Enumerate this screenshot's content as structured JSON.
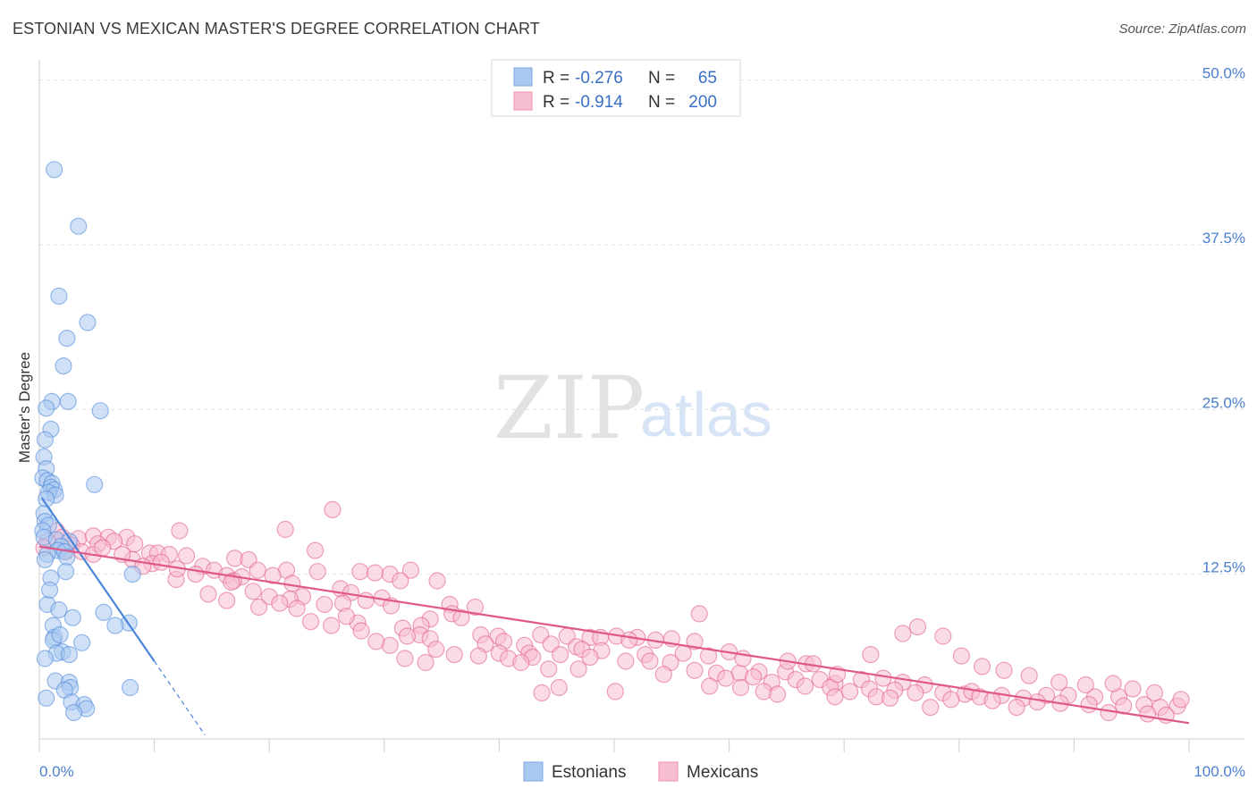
{
  "title": "ESTONIAN VS MEXICAN MASTER'S DEGREE CORRELATION CHART",
  "source": "Source: ZipAtlas.com",
  "watermark": {
    "zip": "ZIP",
    "atlas": "atlas"
  },
  "legend_top": {
    "rows": [
      {
        "r_label": "R = ",
        "r_value": "-0.276",
        "n_label": "N = ",
        "n_value": "65",
        "color": "#a9c8f0"
      },
      {
        "r_label": "R = ",
        "r_value": "-0.914",
        "n_label": "N = ",
        "n_value": "200",
        "color": "#f7bdd0"
      }
    ]
  },
  "legend_bottom": [
    {
      "label": "Estonians",
      "color": "#a9c8f0"
    },
    {
      "label": "Mexicans",
      "color": "#f7bdd0"
    }
  ],
  "chart_data": {
    "type": "scatter",
    "title": "ESTONIAN VS MEXICAN MASTER'S DEGREE CORRELATION CHART",
    "xlabel": "",
    "ylabel": "Master's Degree",
    "xlim": [
      0,
      100
    ],
    "ylim": [
      0,
      52
    ],
    "x_tick_labels": [
      {
        "value": 0,
        "label": "0.0%"
      },
      {
        "value": 100,
        "label": "100.0%"
      }
    ],
    "y_tick_labels": [
      {
        "value": 12.5,
        "label": "12.5%"
      },
      {
        "value": 25,
        "label": "25.0%"
      },
      {
        "value": 37.5,
        "label": "37.5%"
      },
      {
        "value": 50,
        "label": "50.0%"
      }
    ],
    "grid": true,
    "series": [
      {
        "name": "Estonians",
        "color": "#4a86d8",
        "fill": "#a9c8f0",
        "r": -0.276,
        "n": 65,
        "trend": {
          "x1": 0.2,
          "y1": 18.3,
          "x2": 10,
          "y2": 5.9,
          "dash_to_x": 14.4,
          "dash_to_y": 0.3
        },
        "points": [
          [
            1.3,
            43.2
          ],
          [
            3.4,
            38.9
          ],
          [
            1.7,
            33.6
          ],
          [
            4.2,
            31.6
          ],
          [
            2.4,
            30.4
          ],
          [
            2.1,
            28.3
          ],
          [
            1.1,
            25.6
          ],
          [
            2.5,
            25.6
          ],
          [
            5.3,
            24.9
          ],
          [
            0.6,
            25.1
          ],
          [
            1.0,
            23.5
          ],
          [
            0.5,
            22.7
          ],
          [
            0.4,
            21.4
          ],
          [
            0.6,
            20.5
          ],
          [
            0.3,
            19.8
          ],
          [
            0.7,
            19.6
          ],
          [
            1.1,
            19.4
          ],
          [
            1.0,
            19.1
          ],
          [
            1.3,
            18.9
          ],
          [
            0.8,
            18.7
          ],
          [
            1.4,
            18.5
          ],
          [
            4.8,
            19.3
          ],
          [
            0.6,
            18.2
          ],
          [
            0.4,
            17.1
          ],
          [
            0.5,
            16.5
          ],
          [
            0.8,
            16.2
          ],
          [
            0.3,
            15.8
          ],
          [
            0.4,
            15.3
          ],
          [
            1.5,
            15.1
          ],
          [
            2.6,
            15.0
          ],
          [
            1.9,
            14.6
          ],
          [
            1.6,
            14.3
          ],
          [
            2.2,
            14.2
          ],
          [
            0.7,
            14.0
          ],
          [
            2.4,
            13.8
          ],
          [
            0.5,
            13.6
          ],
          [
            2.3,
            12.7
          ],
          [
            8.1,
            12.5
          ],
          [
            1.0,
            12.2
          ],
          [
            0.7,
            10.2
          ],
          [
            1.7,
            9.8
          ],
          [
            5.6,
            9.6
          ],
          [
            7.8,
            8.8
          ],
          [
            6.6,
            8.6
          ],
          [
            1.2,
            8.6
          ],
          [
            1.3,
            7.7
          ],
          [
            1.2,
            7.5
          ],
          [
            3.7,
            7.3
          ],
          [
            2.0,
            6.6
          ],
          [
            1.5,
            6.5
          ],
          [
            2.6,
            6.4
          ],
          [
            1.4,
            4.4
          ],
          [
            2.6,
            4.3
          ],
          [
            7.9,
            3.9
          ],
          [
            2.7,
            3.9
          ],
          [
            2.2,
            3.7
          ],
          [
            2.8,
            2.8
          ],
          [
            3.9,
            2.6
          ],
          [
            4.1,
            2.3
          ],
          [
            3.0,
            2.0
          ],
          [
            0.5,
            6.1
          ],
          [
            0.9,
            11.3
          ],
          [
            1.8,
            7.9
          ],
          [
            2.9,
            9.2
          ],
          [
            0.6,
            3.1
          ]
        ]
      },
      {
        "name": "Mexicans",
        "color": "#e0578a",
        "fill": "#f7bdd0",
        "r": -0.914,
        "n": 200,
        "trend": {
          "x1": 0,
          "y1": 14.6,
          "x2": 100,
          "y2": 1.2
        },
        "points": [
          [
            25.5,
            17.4
          ],
          [
            21.4,
            15.9
          ],
          [
            12.2,
            15.8
          ],
          [
            1.5,
            15.8
          ],
          [
            2.0,
            15.3
          ],
          [
            3.4,
            15.2
          ],
          [
            4.7,
            15.4
          ],
          [
            6.0,
            15.3
          ],
          [
            7.6,
            15.3
          ],
          [
            0.7,
            15.0
          ],
          [
            2.8,
            14.7
          ],
          [
            5.1,
            14.8
          ],
          [
            6.5,
            15.0
          ],
          [
            8.3,
            14.8
          ],
          [
            0.4,
            14.5
          ],
          [
            2.3,
            14.2
          ],
          [
            3.7,
            14.2
          ],
          [
            4.7,
            14.0
          ],
          [
            9.6,
            14.1
          ],
          [
            10.3,
            14.1
          ],
          [
            11.3,
            14.0
          ],
          [
            12.8,
            13.9
          ],
          [
            8.1,
            13.6
          ],
          [
            9.8,
            13.3
          ],
          [
            14.2,
            13.1
          ],
          [
            17.0,
            13.7
          ],
          [
            18.2,
            13.6
          ],
          [
            9.0,
            13.1
          ],
          [
            15.2,
            12.8
          ],
          [
            19.0,
            12.8
          ],
          [
            21.5,
            12.8
          ],
          [
            24.2,
            12.7
          ],
          [
            16.3,
            12.4
          ],
          [
            17.6,
            12.3
          ],
          [
            20.3,
            12.4
          ],
          [
            11.9,
            12.1
          ],
          [
            16.9,
            12.0
          ],
          [
            27.9,
            12.7
          ],
          [
            29.2,
            12.6
          ],
          [
            30.5,
            12.5
          ],
          [
            32.3,
            12.8
          ],
          [
            31.4,
            12.0
          ],
          [
            34.6,
            12.0
          ],
          [
            24.0,
            14.3
          ],
          [
            22.0,
            11.8
          ],
          [
            26.2,
            11.4
          ],
          [
            27.1,
            11.1
          ],
          [
            14.7,
            11.0
          ],
          [
            16.3,
            10.5
          ],
          [
            20.0,
            10.8
          ],
          [
            22.9,
            10.8
          ],
          [
            21.8,
            10.6
          ],
          [
            20.9,
            10.3
          ],
          [
            24.8,
            10.2
          ],
          [
            26.4,
            10.3
          ],
          [
            28.4,
            10.5
          ],
          [
            29.8,
            10.7
          ],
          [
            30.6,
            10.1
          ],
          [
            35.7,
            10.2
          ],
          [
            37.9,
            10.0
          ],
          [
            35.9,
            9.5
          ],
          [
            36.7,
            9.2
          ],
          [
            27.7,
            8.8
          ],
          [
            34.0,
            9.1
          ],
          [
            33.2,
            8.6
          ],
          [
            31.6,
            8.4
          ],
          [
            33.1,
            7.9
          ],
          [
            32.0,
            7.8
          ],
          [
            34.0,
            7.6
          ],
          [
            38.4,
            7.9
          ],
          [
            39.9,
            7.8
          ],
          [
            38.8,
            7.2
          ],
          [
            40.4,
            7.4
          ],
          [
            43.6,
            7.9
          ],
          [
            45.9,
            7.8
          ],
          [
            47.9,
            7.7
          ],
          [
            48.8,
            7.7
          ],
          [
            50.2,
            7.8
          ],
          [
            52.0,
            7.7
          ],
          [
            55.0,
            7.6
          ],
          [
            42.2,
            7.1
          ],
          [
            44.5,
            7.2
          ],
          [
            46.7,
            7.0
          ],
          [
            51.3,
            7.5
          ],
          [
            53.6,
            7.5
          ],
          [
            57.0,
            7.4
          ],
          [
            42.6,
            6.5
          ],
          [
            40.0,
            6.5
          ],
          [
            38.2,
            6.3
          ],
          [
            47.2,
            6.8
          ],
          [
            48.9,
            6.7
          ],
          [
            52.7,
            6.4
          ],
          [
            56.0,
            6.5
          ],
          [
            58.2,
            6.3
          ],
          [
            60.0,
            6.6
          ],
          [
            40.8,
            6.1
          ],
          [
            42.9,
            6.2
          ],
          [
            45.3,
            6.4
          ],
          [
            47.9,
            6.2
          ],
          [
            51.0,
            5.9
          ],
          [
            53.1,
            5.9
          ],
          [
            54.9,
            5.8
          ],
          [
            44.3,
            5.3
          ],
          [
            41.9,
            5.8
          ],
          [
            57.0,
            5.2
          ],
          [
            58.9,
            5.0
          ],
          [
            60.9,
            5.0
          ],
          [
            62.6,
            5.1
          ],
          [
            64.9,
            5.1
          ],
          [
            66.7,
            5.7
          ],
          [
            59.7,
            4.6
          ],
          [
            62.1,
            4.7
          ],
          [
            63.7,
            4.3
          ],
          [
            65.8,
            4.5
          ],
          [
            67.9,
            4.5
          ],
          [
            69.2,
            4.2
          ],
          [
            71.5,
            4.5
          ],
          [
            73.4,
            4.6
          ],
          [
            75.1,
            4.3
          ],
          [
            77.0,
            4.1
          ],
          [
            58.3,
            4.0
          ],
          [
            61.0,
            3.9
          ],
          [
            63.0,
            3.6
          ],
          [
            66.6,
            4.0
          ],
          [
            68.8,
            3.9
          ],
          [
            70.5,
            3.6
          ],
          [
            72.2,
            3.8
          ],
          [
            74.4,
            3.7
          ],
          [
            76.2,
            3.5
          ],
          [
            78.6,
            3.5
          ],
          [
            80.5,
            3.4
          ],
          [
            81.1,
            3.6
          ],
          [
            64.2,
            3.4
          ],
          [
            69.2,
            3.2
          ],
          [
            72.8,
            3.2
          ],
          [
            74.0,
            3.1
          ],
          [
            79.3,
            3.0
          ],
          [
            81.8,
            3.2
          ],
          [
            83.7,
            3.3
          ],
          [
            85.6,
            3.1
          ],
          [
            87.6,
            3.3
          ],
          [
            89.5,
            3.3
          ],
          [
            91.8,
            3.2
          ],
          [
            93.9,
            3.2
          ],
          [
            82.9,
            2.9
          ],
          [
            86.8,
            2.8
          ],
          [
            88.8,
            2.7
          ],
          [
            91.3,
            2.6
          ],
          [
            94.3,
            2.5
          ],
          [
            96.1,
            2.6
          ],
          [
            97.5,
            2.4
          ],
          [
            99.0,
            2.5
          ],
          [
            77.5,
            2.4
          ],
          [
            85.0,
            2.4
          ],
          [
            93.0,
            2.0
          ],
          [
            96.4,
            1.9
          ],
          [
            98.0,
            1.8
          ],
          [
            99.3,
            3.0
          ],
          [
            97.0,
            3.5
          ],
          [
            95.1,
            3.8
          ],
          [
            93.4,
            4.2
          ],
          [
            91.0,
            4.1
          ],
          [
            88.7,
            4.3
          ],
          [
            86.1,
            4.8
          ],
          [
            83.9,
            5.2
          ],
          [
            82.0,
            5.5
          ],
          [
            80.2,
            6.3
          ],
          [
            78.6,
            7.8
          ],
          [
            76.4,
            8.5
          ],
          [
            75.1,
            8.0
          ],
          [
            72.3,
            6.4
          ],
          [
            69.4,
            4.9
          ],
          [
            67.3,
            5.7
          ],
          [
            65.1,
            5.9
          ],
          [
            61.2,
            6.1
          ],
          [
            57.4,
            9.5
          ],
          [
            54.3,
            4.9
          ],
          [
            50.1,
            3.6
          ],
          [
            46.9,
            5.3
          ],
          [
            45.2,
            3.9
          ],
          [
            43.7,
            3.5
          ],
          [
            36.1,
            6.4
          ],
          [
            34.5,
            6.8
          ],
          [
            33.6,
            5.8
          ],
          [
            31.8,
            6.1
          ],
          [
            30.5,
            7.1
          ],
          [
            29.3,
            7.4
          ],
          [
            28.0,
            8.2
          ],
          [
            26.7,
            9.3
          ],
          [
            25.4,
            8.6
          ],
          [
            23.6,
            8.9
          ],
          [
            22.4,
            9.9
          ],
          [
            19.1,
            10.0
          ],
          [
            18.6,
            11.2
          ],
          [
            16.7,
            11.9
          ],
          [
            13.6,
            12.5
          ],
          [
            12.0,
            12.9
          ],
          [
            10.6,
            13.4
          ],
          [
            7.2,
            14.0
          ],
          [
            5.5,
            14.5
          ]
        ]
      }
    ]
  }
}
